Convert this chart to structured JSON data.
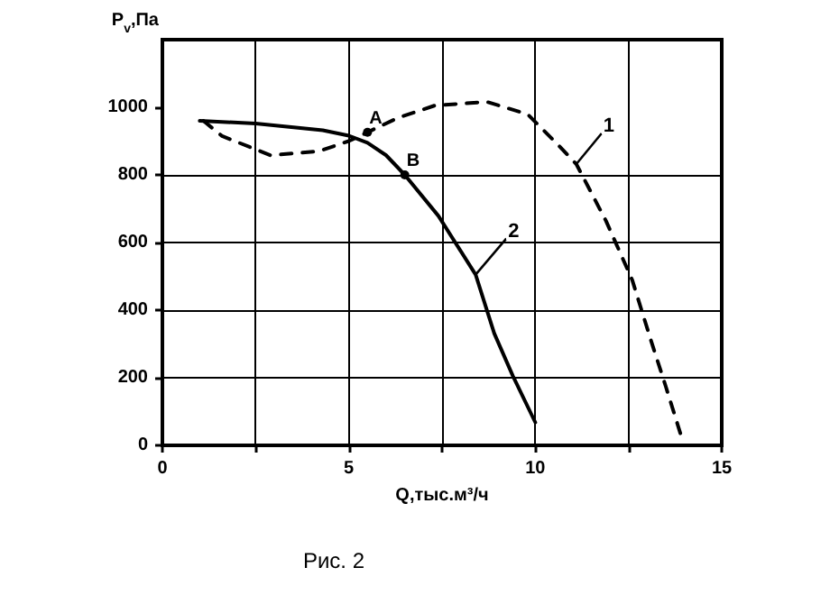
{
  "chart_data": {
    "type": "line",
    "xlabel": "Q,тыс.м³/ч",
    "ylabel": "P$_{v}$,Па",
    "xlim": [
      0,
      15
    ],
    "xticks": [
      0,
      {
        "value": 2.5,
        "label": null
      },
      5,
      {
        "value": 7.5,
        "label": null
      },
      10,
      {
        "value": 12.5,
        "label": null
      },
      15
    ],
    "ylim": [
      0,
      1200
    ],
    "yticks": [
      0,
      200,
      400,
      600,
      800,
      1000
    ],
    "grid": true,
    "marker": "none",
    "series": [
      {
        "name": "1",
        "color": "#000000",
        "line_style": "dashed",
        "x": [
          1.1,
          1.6,
          2.9,
          4.2,
          5,
          5.5,
          6.3,
          7.3,
          8.7,
          9.8,
          10.6,
          11.1,
          11.9,
          12.6,
          13.1,
          13.5,
          13.9
        ],
        "values": [
          960,
          915,
          858,
          870,
          900,
          926,
          968,
          1005,
          1016,
          979,
          890,
          832,
          663,
          489,
          311,
          174,
          32
        ]
      },
      {
        "name": "2",
        "color": "#000000",
        "line_style": "solid",
        "x": [
          1,
          2.5,
          3.4,
          4.3,
          5,
          5.5,
          6,
          6.5,
          7.4,
          8.4,
          8.9,
          9.4,
          10
        ],
        "values": [
          960,
          952,
          942,
          932,
          916,
          895,
          858,
          800,
          679,
          505,
          331,
          205,
          68
        ]
      }
    ],
    "annotations": [
      {
        "text": "A",
        "x": 5.5,
        "y": 926
      },
      {
        "text": "B",
        "x": 6.5,
        "y": 800
      },
      "Рис. 2"
    ]
  }
}
